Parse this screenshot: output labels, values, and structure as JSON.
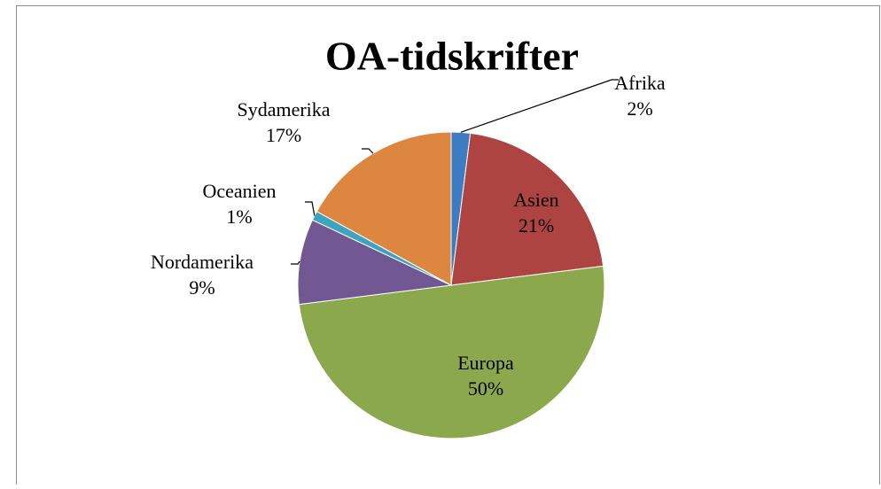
{
  "chart_data": {
    "type": "pie",
    "title": "OA-tidskrifter",
    "categories": [
      "Afrika",
      "Asien",
      "Europa",
      "Nordamerika",
      "Oceanien",
      "Sydamerika"
    ],
    "values": [
      2,
      21,
      50,
      9,
      1,
      17
    ],
    "value_labels": [
      "2%",
      "21%",
      "50%",
      "9%",
      "1%",
      "17%"
    ],
    "colors": [
      "#3d7cc2",
      "#ad4441",
      "#8ba84c",
      "#715893",
      "#3ea3bf",
      "#dc8640"
    ]
  }
}
